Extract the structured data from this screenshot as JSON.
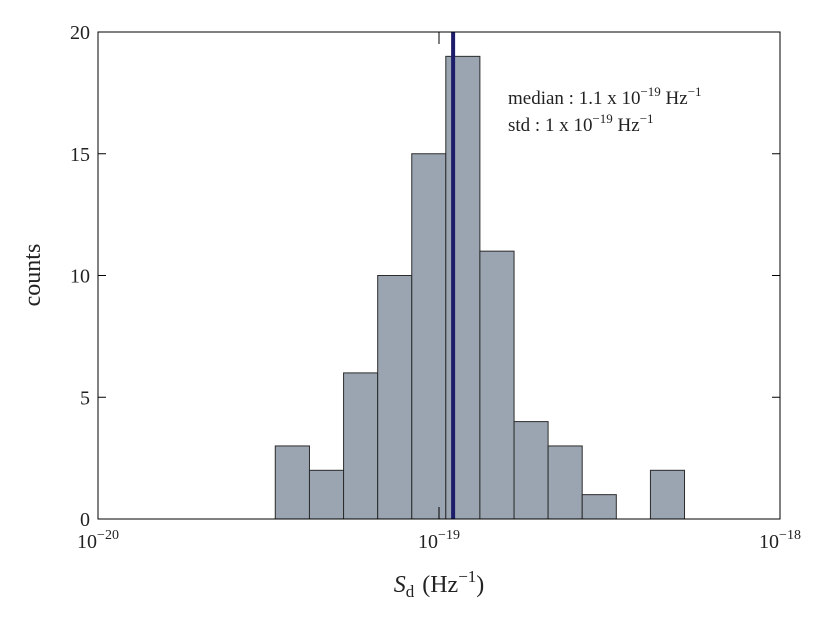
{
  "chart_data": {
    "type": "histogram",
    "bins": [
      3.31e-20,
      4.17e-20,
      5.25e-20,
      6.61e-20,
      8.32e-20,
      1.047e-19,
      1.318e-19,
      1.66e-19,
      2.089e-19,
      2.63e-19,
      3.311e-19,
      4.169e-19,
      5.248e-19
    ],
    "values": [
      3,
      2,
      6,
      10,
      15,
      19,
      11,
      4,
      3,
      1,
      0,
      2
    ],
    "color": "#9aa5b1",
    "edge_color": "#2b2b2b",
    "xscale": "log",
    "xlim": [
      1e-20,
      1e-18
    ],
    "xticks": [
      {
        "value": 1e-20,
        "label": "10",
        "exponent": "−20"
      },
      {
        "value": 1e-19,
        "label": "10",
        "exponent": "−19"
      },
      {
        "value": 1e-18,
        "label": "10",
        "exponent": "−18"
      }
    ],
    "ylim": [
      0,
      20
    ],
    "yticks": [
      0,
      5,
      10,
      15,
      20
    ],
    "median_line": {
      "value": 1.1e-19,
      "color": "#1c1c6b"
    },
    "xlabel": {
      "symbol": "S",
      "subscript": "d",
      "unit": "(Hz",
      "exponent": "−1",
      "close": ")"
    },
    "ylabel": "counts",
    "annotations": [
      [
        "median : 1.1 x 10",
        "−19",
        " Hz",
        "−1"
      ],
      [
        "std : 1 x 10",
        "−19",
        " Hz",
        "−1"
      ]
    ]
  }
}
